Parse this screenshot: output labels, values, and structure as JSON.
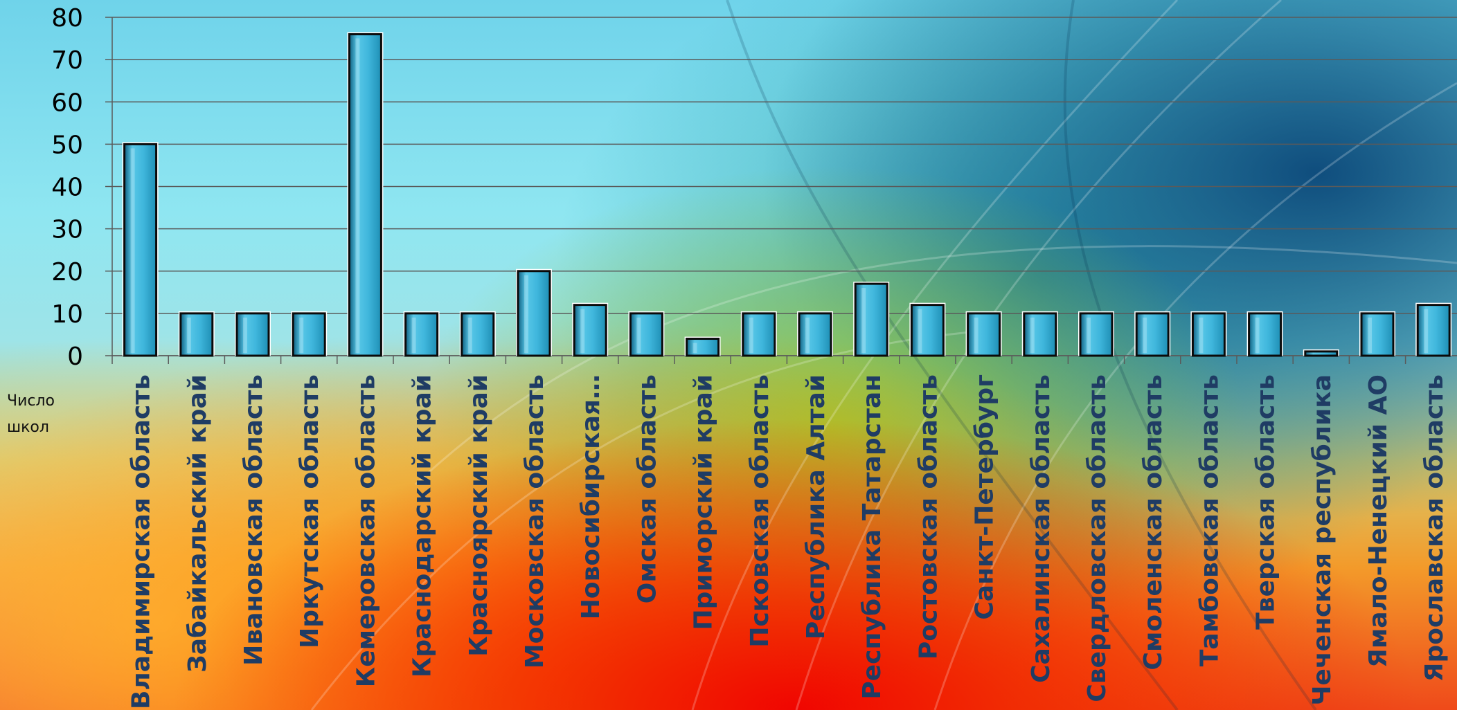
{
  "chart_data": {
    "type": "bar",
    "categories": [
      "Владимирская область",
      "Забайкальский край",
      "Ивановская область",
      "Иркутская область",
      "Кемеровская область",
      "Краснодарский край",
      "Красноярский край",
      "Московская область",
      "Новосибирская…",
      "Омская область",
      "Приморский край",
      "Псковская область",
      "Республика Алтай",
      "Республика Татарстан",
      "Ростовская область",
      "Санкт-Петербург",
      "Сахалинская область",
      "Свердловская область",
      "Смоленская область",
      "Тамбовская область",
      "Тверская область",
      "Чеченская республика",
      "Ямало-Ненецкий АО",
      "Ярославская область"
    ],
    "series": [
      {
        "name": "Число школ",
        "values": [
          50,
          10,
          10,
          10,
          76,
          10,
          10,
          20,
          12,
          10,
          4,
          10,
          10,
          17,
          12,
          10,
          10,
          10,
          10,
          10,
          10,
          1,
          10,
          12
        ]
      }
    ],
    "yticks": [
      "0",
      "10",
      "20",
      "30",
      "40",
      "50",
      "60",
      "70",
      "80"
    ],
    "ylim": [
      0,
      80
    ],
    "grid": true,
    "legend": "left",
    "colors": {
      "bar_fill_top": "#59c8e8",
      "bar_fill_bottom": "#1f8fb5",
      "bar_edge": "#0a0a0a",
      "bar_cap": "#ffffff",
      "label": "#1f3c64",
      "grid": "#5a5a5a"
    }
  }
}
